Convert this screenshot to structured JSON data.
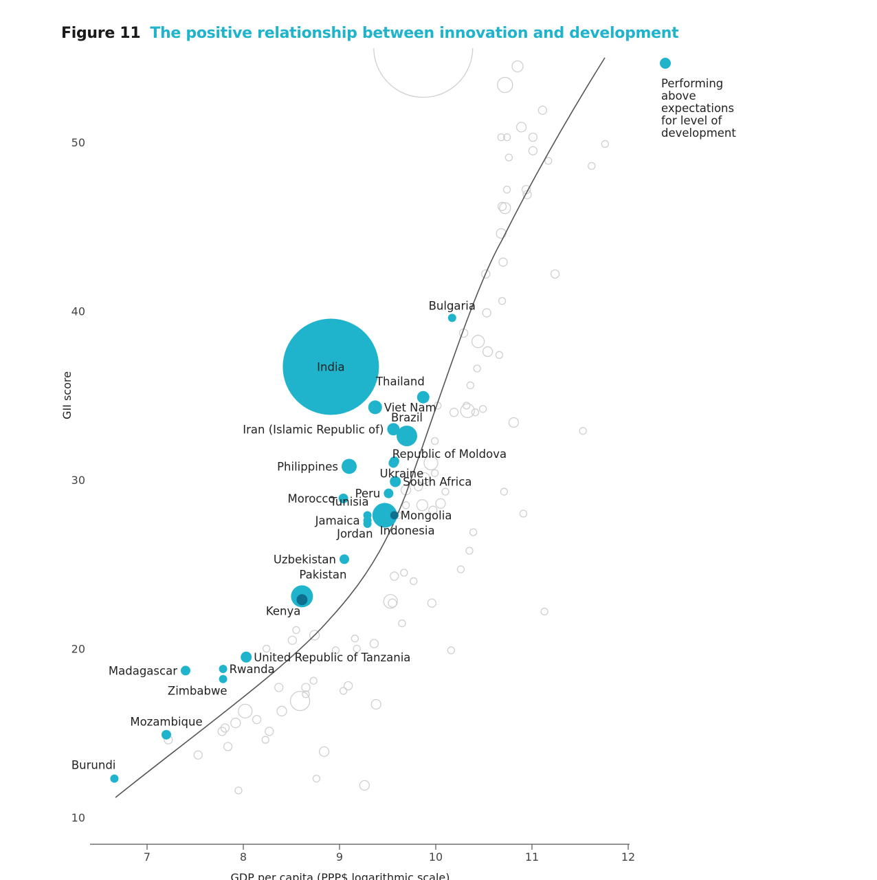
{
  "figure": {
    "label": "Figure 11",
    "title": "The positive relationship between innovation and development"
  },
  "colors": {
    "highlight": "#20b3cc",
    "overlap": "#0f6f8f",
    "other": "#cfcfcf",
    "curve": "#555555",
    "axis": "#555555"
  },
  "chart_data": {
    "type": "scatter",
    "xlabel": "GDP per capita (PPP$ logarithmic scale)",
    "ylabel": "GII score",
    "xlim": [
      6.4,
      12
    ],
    "ylim": [
      8.5,
      55
    ],
    "xticks": [
      7,
      8,
      9,
      10,
      11,
      12
    ],
    "yticks": [
      10,
      20,
      30,
      40,
      50
    ],
    "legend": {
      "position": "top-right",
      "lines": [
        "Performing",
        "above",
        "expectations",
        "for level of",
        "development"
      ]
    },
    "highlighted_series": [
      {
        "name": "India",
        "x": 8.91,
        "y": 36.7,
        "size": 70,
        "label_pos": "center"
      },
      {
        "name": "Bulgaria",
        "x": 10.17,
        "y": 39.6,
        "size": 6,
        "label_pos": "above"
      },
      {
        "name": "Thailand",
        "x": 9.87,
        "y": 34.9,
        "size": 9,
        "label_pos": "above-left"
      },
      {
        "name": "Viet Nam",
        "x": 9.37,
        "y": 34.3,
        "size": 10,
        "label_pos": "right"
      },
      {
        "name": "Iran (Islamic Republic of)",
        "x": 9.56,
        "y": 33.0,
        "size": 9,
        "label_pos": "left"
      },
      {
        "name": "Brazil",
        "x": 9.7,
        "y": 32.6,
        "size": 15,
        "label_pos": "above"
      },
      {
        "name": "Republic of Moldova",
        "x": 9.57,
        "y": 31.1,
        "size": 7,
        "label_pos": "right-up"
      },
      {
        "name": "Philippines",
        "x": 9.1,
        "y": 30.8,
        "size": 11,
        "label_pos": "left"
      },
      {
        "name": "Ukraine",
        "x": 9.56,
        "y": 31.0,
        "size": 7,
        "label_pos": "below-left"
      },
      {
        "name": "South Africa",
        "x": 9.58,
        "y": 29.9,
        "size": 8,
        "label_pos": "right"
      },
      {
        "name": "Peru",
        "x": 9.51,
        "y": 29.2,
        "size": 7,
        "label_pos": "left"
      },
      {
        "name": "Morocco",
        "x": 9.04,
        "y": 28.9,
        "size": 7,
        "label_pos": "left"
      },
      {
        "name": "Indonesia",
        "x": 9.47,
        "y": 27.9,
        "size": 18,
        "label_pos": "below-right"
      },
      {
        "name": "Mongolia",
        "x": 9.57,
        "y": 27.9,
        "size": 6,
        "label_pos": "right"
      },
      {
        "name": "Tunisia",
        "x": 9.29,
        "y": 27.9,
        "size": 6,
        "label_pos": "above-left"
      },
      {
        "name": "Jamaica",
        "x": 9.29,
        "y": 27.6,
        "size": 6,
        "label_pos": "left"
      },
      {
        "name": "Jordan",
        "x": 9.29,
        "y": 27.4,
        "size": 6,
        "label_pos": "below-left"
      },
      {
        "name": "Uzbekistan",
        "x": 9.05,
        "y": 25.3,
        "size": 7,
        "label_pos": "left"
      },
      {
        "name": "Pakistan",
        "x": 8.61,
        "y": 23.1,
        "size": 16,
        "label_pos": "above-right"
      },
      {
        "name": "Kenya",
        "x": 8.61,
        "y": 22.9,
        "size": 8,
        "label_pos": "below-left"
      },
      {
        "name": "United Republic of Tanzania",
        "x": 8.03,
        "y": 19.5,
        "size": 8,
        "label_pos": "right"
      },
      {
        "name": "Rwanda",
        "x": 7.79,
        "y": 18.8,
        "size": 6,
        "label_pos": "right"
      },
      {
        "name": "Madagascar",
        "x": 7.4,
        "y": 18.7,
        "size": 7,
        "label_pos": "left"
      },
      {
        "name": "Zimbabwe",
        "x": 7.79,
        "y": 18.2,
        "size": 6,
        "label_pos": "below-left"
      },
      {
        "name": "Mozambique",
        "x": 7.2,
        "y": 14.9,
        "size": 7,
        "label_pos": "above"
      },
      {
        "name": "Burundi",
        "x": 6.66,
        "y": 12.3,
        "size": 6,
        "label_pos": "above-left"
      }
    ],
    "other_economies": [
      [
        9.87,
        55.6,
        72
      ],
      [
        10.85,
        54.5,
        8
      ],
      [
        10.72,
        53.4,
        11
      ],
      [
        11.11,
        51.9,
        6
      ],
      [
        10.89,
        50.9,
        7
      ],
      [
        10.68,
        50.3,
        5
      ],
      [
        10.74,
        50.3,
        5
      ],
      [
        11.01,
        50.3,
        6
      ],
      [
        11.76,
        49.9,
        5
      ],
      [
        11.01,
        49.5,
        6
      ],
      [
        10.76,
        49.1,
        5
      ],
      [
        11.17,
        48.9,
        5
      ],
      [
        11.62,
        48.6,
        5
      ],
      [
        10.74,
        47.2,
        5
      ],
      [
        10.94,
        47.2,
        6
      ],
      [
        10.95,
        46.9,
        6
      ],
      [
        10.69,
        46.2,
        6
      ],
      [
        10.72,
        46.1,
        8
      ],
      [
        10.68,
        44.6,
        7
      ],
      [
        10.7,
        42.9,
        6
      ],
      [
        10.52,
        42.2,
        6
      ],
      [
        11.24,
        42.2,
        6
      ],
      [
        10.69,
        40.6,
        5
      ],
      [
        10.53,
        39.9,
        6
      ],
      [
        10.29,
        38.7,
        6
      ],
      [
        10.44,
        38.2,
        9
      ],
      [
        10.54,
        37.6,
        7
      ],
      [
        10.66,
        37.4,
        5
      ],
      [
        10.43,
        36.6,
        5
      ],
      [
        10.36,
        35.6,
        5
      ],
      [
        10.02,
        34.4,
        5
      ],
      [
        10.32,
        34.4,
        5
      ],
      [
        10.33,
        34.1,
        10
      ],
      [
        10.41,
        34.0,
        5
      ],
      [
        10.49,
        34.2,
        5
      ],
      [
        10.19,
        34.0,
        6
      ],
      [
        10.81,
        33.4,
        7
      ],
      [
        11.53,
        32.9,
        5
      ],
      [
        9.99,
        32.3,
        5
      ],
      [
        9.95,
        31.0,
        10
      ],
      [
        9.99,
        30.4,
        5
      ],
      [
        9.88,
        30.1,
        8
      ],
      [
        9.69,
        29.4,
        7
      ],
      [
        9.82,
        29.6,
        6
      ],
      [
        9.86,
        28.5,
        8
      ],
      [
        10.05,
        28.6,
        7
      ],
      [
        10.1,
        29.3,
        5
      ],
      [
        10.71,
        29.3,
        5
      ],
      [
        9.69,
        28.5,
        5
      ],
      [
        10.91,
        28.0,
        5
      ],
      [
        9.97,
        28.2,
        6
      ],
      [
        9.61,
        27.9,
        5
      ],
      [
        10.39,
        26.9,
        5
      ],
      [
        10.35,
        25.8,
        5
      ],
      [
        10.26,
        24.7,
        5
      ],
      [
        9.57,
        24.3,
        6
      ],
      [
        9.67,
        24.5,
        5
      ],
      [
        9.77,
        24.0,
        5
      ],
      [
        9.53,
        22.8,
        10
      ],
      [
        9.55,
        22.7,
        6
      ],
      [
        9.96,
        22.7,
        6
      ],
      [
        11.13,
        22.2,
        5
      ],
      [
        9.65,
        21.5,
        5
      ],
      [
        8.55,
        21.1,
        5
      ],
      [
        8.74,
        20.8,
        7
      ],
      [
        8.51,
        20.5,
        6
      ],
      [
        9.16,
        20.6,
        5
      ],
      [
        9.36,
        20.3,
        6
      ],
      [
        8.96,
        19.9,
        5
      ],
      [
        9.18,
        20.0,
        5
      ],
      [
        8.24,
        20.0,
        5
      ],
      [
        10.16,
        19.9,
        5
      ],
      [
        8.73,
        18.1,
        5
      ],
      [
        8.65,
        17.7,
        6
      ],
      [
        8.37,
        17.7,
        6
      ],
      [
        9.09,
        17.8,
        6
      ],
      [
        9.04,
        17.5,
        5
      ],
      [
        8.65,
        17.3,
        5
      ],
      [
        8.59,
        16.9,
        14
      ],
      [
        8.4,
        16.3,
        7
      ],
      [
        9.38,
        16.7,
        7
      ],
      [
        8.02,
        16.3,
        10
      ],
      [
        8.14,
        15.8,
        6
      ],
      [
        7.92,
        15.6,
        7
      ],
      [
        7.81,
        15.3,
        6
      ],
      [
        7.78,
        15.1,
        6
      ],
      [
        8.27,
        15.1,
        6
      ],
      [
        8.23,
        14.6,
        5
      ],
      [
        7.22,
        14.6,
        6
      ],
      [
        7.84,
        14.2,
        6
      ],
      [
        7.53,
        13.7,
        6
      ],
      [
        8.84,
        13.9,
        7
      ],
      [
        8.76,
        12.3,
        5
      ],
      [
        9.26,
        11.9,
        7
      ],
      [
        7.95,
        11.6,
        5
      ]
    ]
  }
}
